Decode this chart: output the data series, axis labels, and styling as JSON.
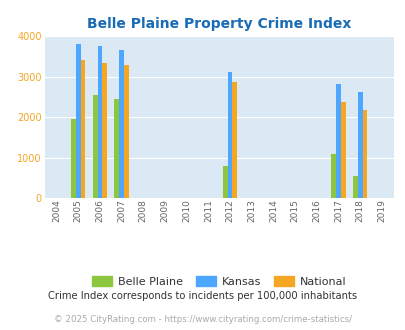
{
  "title": "Belle Plaine Property Crime Index",
  "years": [
    2004,
    2005,
    2006,
    2007,
    2008,
    2009,
    2010,
    2011,
    2012,
    2013,
    2014,
    2015,
    2016,
    2017,
    2018,
    2019
  ],
  "belle_plaine": {
    "2005": 1950,
    "2006": 2540,
    "2007": 2450,
    "2012": 780,
    "2017": 1090,
    "2018": 540
  },
  "kansas": {
    "2005": 3820,
    "2006": 3760,
    "2007": 3650,
    "2012": 3120,
    "2017": 2810,
    "2018": 2630
  },
  "national": {
    "2005": 3420,
    "2006": 3340,
    "2007": 3300,
    "2012": 2870,
    "2017": 2380,
    "2018": 2180
  },
  "bar_width": 0.22,
  "ylim": [
    0,
    4000
  ],
  "yticks": [
    0,
    1000,
    2000,
    3000,
    4000
  ],
  "color_belle_plaine": "#8dc63f",
  "color_kansas": "#4da6ff",
  "color_national": "#f5a623",
  "bg_color": "#dbe9f4",
  "title_color": "#1a6bb5",
  "legend_label_bp": "Belle Plaine",
  "legend_label_ks": "Kansas",
  "legend_label_nat": "National",
  "footnote1": "Crime Index corresponds to incidents per 100,000 inhabitants",
  "footnote2": "© 2025 CityRating.com - https://www.cityrating.com/crime-statistics/",
  "xlabel_years": [
    2004,
    2005,
    2006,
    2007,
    2008,
    2009,
    2010,
    2011,
    2012,
    2013,
    2014,
    2015,
    2016,
    2017,
    2018,
    2019
  ],
  "ytick_color": "#f5a623",
  "xtick_color": "#666666"
}
